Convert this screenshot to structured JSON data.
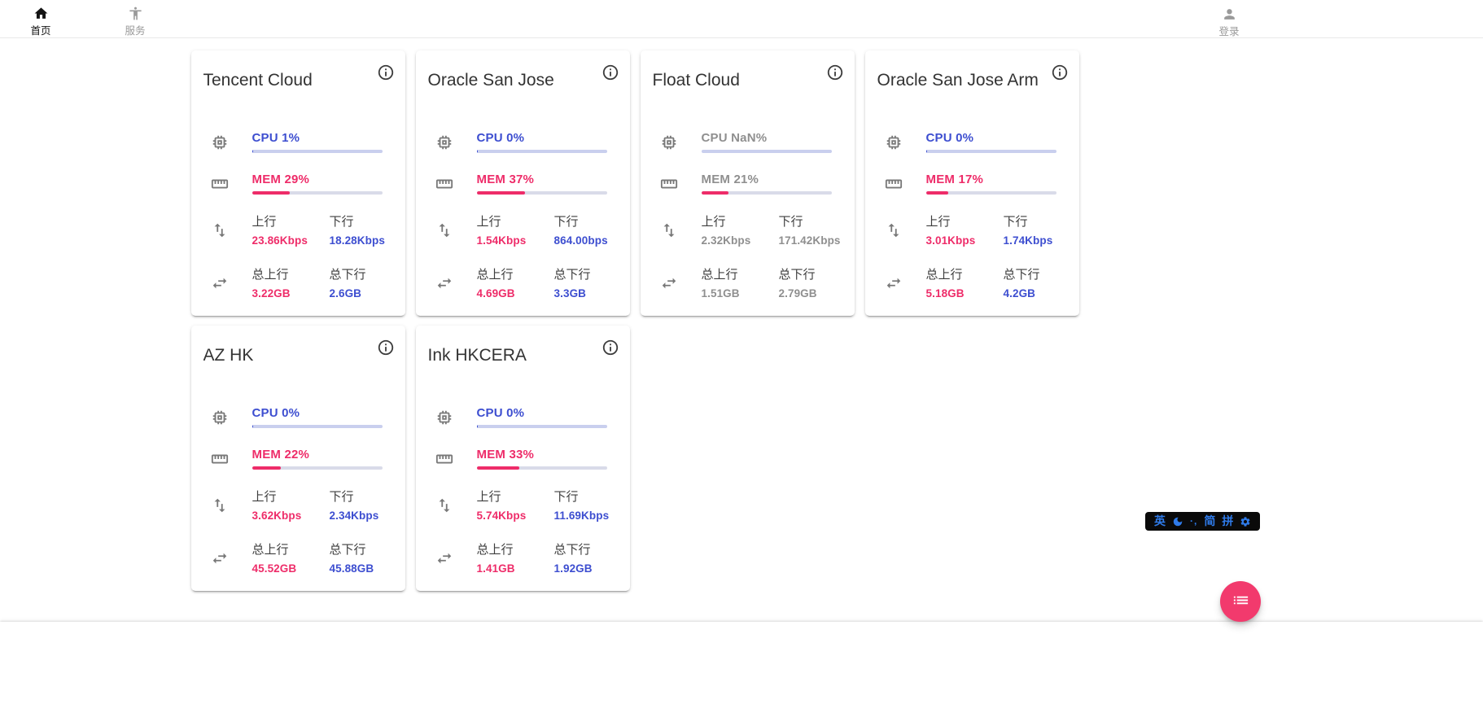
{
  "nav": {
    "home": {
      "label": "首页"
    },
    "services": {
      "label": "服务"
    },
    "login": {
      "label": "登录"
    }
  },
  "labels": {
    "up": "上行",
    "down": "下行",
    "total_up": "总上行",
    "total_down": "总下行"
  },
  "servers": [
    {
      "name": "Tencent Cloud",
      "online": true,
      "cpu": {
        "text": "CPU 1%",
        "percent": 1
      },
      "mem": {
        "text": "MEM 29%",
        "percent": 29
      },
      "up": "23.86Kbps",
      "down": "18.28Kbps",
      "total_up": "3.22GB",
      "total_down": "2.6GB"
    },
    {
      "name": "Oracle San Jose",
      "online": true,
      "cpu": {
        "text": "CPU 0%",
        "percent": 0
      },
      "mem": {
        "text": "MEM 37%",
        "percent": 37
      },
      "up": "1.54Kbps",
      "down": "864.00bps",
      "total_up": "4.69GB",
      "total_down": "3.3GB"
    },
    {
      "name": "Float Cloud",
      "online": false,
      "cpu": {
        "text": "CPU NaN%",
        "percent": null
      },
      "mem": {
        "text": "MEM 21%",
        "percent": 21
      },
      "up": "2.32Kbps",
      "down": "171.42Kbps",
      "total_up": "1.51GB",
      "total_down": "2.79GB"
    },
    {
      "name": "Oracle San Jose Arm",
      "online": true,
      "cpu": {
        "text": "CPU 0%",
        "percent": 0
      },
      "mem": {
        "text": "MEM 17%",
        "percent": 17
      },
      "up": "3.01Kbps",
      "down": "1.74Kbps",
      "total_up": "5.18GB",
      "total_down": "4.2GB"
    },
    {
      "name": "AZ HK",
      "online": true,
      "cpu": {
        "text": "CPU 0%",
        "percent": 0
      },
      "mem": {
        "text": "MEM 22%",
        "percent": 22
      },
      "up": "3.62Kbps",
      "down": "2.34Kbps",
      "total_up": "45.52GB",
      "total_down": "45.88GB"
    },
    {
      "name": "Ink HKCERA",
      "online": true,
      "cpu": {
        "text": "CPU 0%",
        "percent": 0
      },
      "mem": {
        "text": "MEM 33%",
        "percent": 33
      },
      "up": "5.74Kbps",
      "down": "11.69Kbps",
      "total_up": "1.41GB",
      "total_down": "1.92GB"
    }
  ],
  "ime": {
    "english": "英",
    "punct": "·,",
    "simplified": "简",
    "pinyin": "拼"
  },
  "colors": {
    "accent_blue": "#3d4ed0",
    "accent_pink": "#ee2c69",
    "muted_gray": "#8f8f8f",
    "cpu_track": "#c9cfee",
    "mem_track": "#d9dbe9",
    "fab_pink": "#f23a6d",
    "ime_blue": "#2f7bea",
    "nav_active": "#141414",
    "nav_inactive": "#9a9a9a"
  }
}
